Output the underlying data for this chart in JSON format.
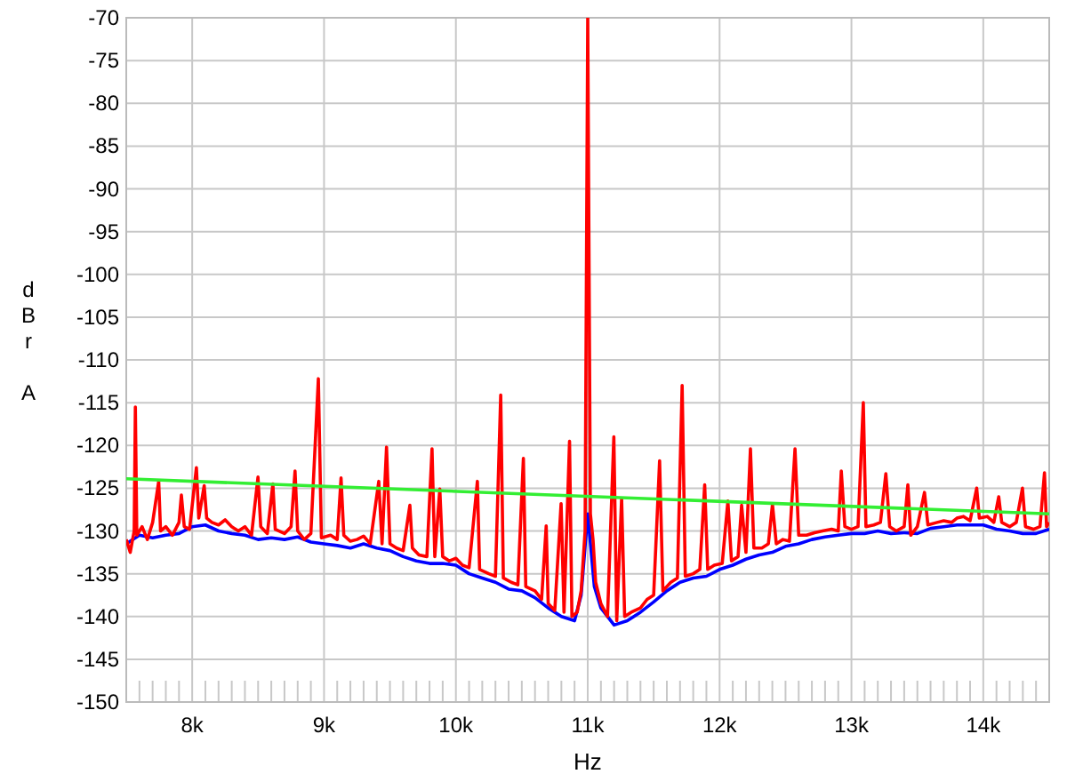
{
  "chart_data": {
    "type": "line",
    "xlabel": "Hz",
    "ylabel": "dBr A",
    "xlim": [
      7500,
      14500
    ],
    "ylim": [
      -150,
      -70
    ],
    "grid": true,
    "line_style": "solid",
    "xticks": [
      {
        "value": 8000,
        "label": "8k"
      },
      {
        "value": 9000,
        "label": "9k"
      },
      {
        "value": 10000,
        "label": "10k"
      },
      {
        "value": 11000,
        "label": "11k"
      },
      {
        "value": 12000,
        "label": "12k"
      },
      {
        "value": 13000,
        "label": "13k"
      },
      {
        "value": 14000,
        "label": "14k"
      },
      {
        "value": 7600,
        "label": null
      },
      {
        "value": 7700,
        "label": null
      },
      {
        "value": 7800,
        "label": null
      },
      {
        "value": 7900,
        "label": null
      },
      {
        "value": 8100,
        "label": null
      },
      {
        "value": 8200,
        "label": null
      },
      {
        "value": 8300,
        "label": null
      },
      {
        "value": 8400,
        "label": null
      },
      {
        "value": 8500,
        "label": null
      },
      {
        "value": 8600,
        "label": null
      },
      {
        "value": 8700,
        "label": null
      },
      {
        "value": 8800,
        "label": null
      },
      {
        "value": 8900,
        "label": null
      },
      {
        "value": 9100,
        "label": null
      },
      {
        "value": 9200,
        "label": null
      },
      {
        "value": 9300,
        "label": null
      },
      {
        "value": 9400,
        "label": null
      },
      {
        "value": 9500,
        "label": null
      },
      {
        "value": 9600,
        "label": null
      },
      {
        "value": 9700,
        "label": null
      },
      {
        "value": 9800,
        "label": null
      },
      {
        "value": 9900,
        "label": null
      },
      {
        "value": 10100,
        "label": null
      },
      {
        "value": 10200,
        "label": null
      },
      {
        "value": 10300,
        "label": null
      },
      {
        "value": 10400,
        "label": null
      },
      {
        "value": 10500,
        "label": null
      },
      {
        "value": 10600,
        "label": null
      },
      {
        "value": 10700,
        "label": null
      },
      {
        "value": 10800,
        "label": null
      },
      {
        "value": 10900,
        "label": null
      },
      {
        "value": 11100,
        "label": null
      },
      {
        "value": 11200,
        "label": null
      },
      {
        "value": 11300,
        "label": null
      },
      {
        "value": 11400,
        "label": null
      },
      {
        "value": 11500,
        "label": null
      },
      {
        "value": 11600,
        "label": null
      },
      {
        "value": 11700,
        "label": null
      },
      {
        "value": 11800,
        "label": null
      },
      {
        "value": 11900,
        "label": null
      },
      {
        "value": 12100,
        "label": null
      },
      {
        "value": 12200,
        "label": null
      },
      {
        "value": 12300,
        "label": null
      },
      {
        "value": 12400,
        "label": null
      },
      {
        "value": 12500,
        "label": null
      },
      {
        "value": 12600,
        "label": null
      },
      {
        "value": 12700,
        "label": null
      },
      {
        "value": 12800,
        "label": null
      },
      {
        "value": 12900,
        "label": null
      },
      {
        "value": 13100,
        "label": null
      },
      {
        "value": 13200,
        "label": null
      },
      {
        "value": 13300,
        "label": null
      },
      {
        "value": 13400,
        "label": null
      },
      {
        "value": 13500,
        "label": null
      },
      {
        "value": 13600,
        "label": null
      },
      {
        "value": 13700,
        "label": null
      },
      {
        "value": 13800,
        "label": null
      },
      {
        "value": 13900,
        "label": null
      },
      {
        "value": 14100,
        "label": null
      },
      {
        "value": 14200,
        "label": null
      },
      {
        "value": 14300,
        "label": null
      },
      {
        "value": 14400,
        "label": null
      }
    ],
    "yticks": [
      -150,
      -145,
      -140,
      -135,
      -130,
      -125,
      -120,
      -115,
      -110,
      -105,
      -100,
      -95,
      -90,
      -85,
      -80,
      -75,
      -70
    ],
    "series": [
      {
        "color": "#0000ff",
        "x": [
          7500,
          7600,
          7700,
          7800,
          7900,
          8000,
          8100,
          8200,
          8300,
          8400,
          8500,
          8600,
          8700,
          8800,
          8900,
          9000,
          9100,
          9200,
          9300,
          9400,
          9500,
          9600,
          9700,
          9800,
          9900,
          10000,
          10100,
          10200,
          10300,
          10400,
          10500,
          10600,
          10700,
          10800,
          10900,
          10950,
          11000,
          11050,
          11100,
          11200,
          11300,
          11400,
          11500,
          11600,
          11700,
          11800,
          11900,
          12000,
          12100,
          12200,
          12300,
          12400,
          12500,
          12600,
          12700,
          12800,
          12900,
          13000,
          13100,
          13200,
          13300,
          13400,
          13500,
          13600,
          13700,
          13800,
          13900,
          14000,
          14100,
          14200,
          14300,
          14400,
          14500
        ],
        "values": [
          -131.5,
          -130.5,
          -130.8,
          -130.5,
          -130.3,
          -129.5,
          -129.3,
          -130,
          -130.3,
          -130.5,
          -131,
          -130.8,
          -131,
          -130.7,
          -131.3,
          -131.5,
          -131.7,
          -132,
          -131.5,
          -132,
          -132.3,
          -133,
          -133.5,
          -133.8,
          -133.8,
          -134,
          -135,
          -135.5,
          -136,
          -136.8,
          -137,
          -137.8,
          -139,
          -140,
          -140.5,
          -137.5,
          -128,
          -136.5,
          -139,
          -141,
          -140.5,
          -139.5,
          -138.3,
          -137,
          -136,
          -135.5,
          -135.3,
          -134.5,
          -134,
          -133.3,
          -132.8,
          -132.5,
          -131.8,
          -131.5,
          -131,
          -130.7,
          -130.5,
          -130.3,
          -130.3,
          -130,
          -130.3,
          -130.2,
          -130.3,
          -129.7,
          -129.5,
          -129.3,
          -129.3,
          -129.3,
          -129.8,
          -130,
          -130.3,
          -130.3,
          -129.8
        ]
      },
      {
        "color": "#ff0000",
        "x": [
          7500,
          7530,
          7560,
          7569,
          7580,
          7620,
          7660,
          7700,
          7746,
          7760,
          7800,
          7850,
          7900,
          7918,
          7940,
          7980,
          8032,
          8050,
          8091,
          8110,
          8150,
          8200,
          8250,
          8300,
          8350,
          8400,
          8450,
          8499,
          8520,
          8570,
          8612,
          8630,
          8700,
          8750,
          8780,
          8800,
          8850,
          8900,
          8957,
          8980,
          9050,
          9100,
          9129,
          9150,
          9200,
          9250,
          9300,
          9350,
          9415,
          9440,
          9474,
          9500,
          9550,
          9600,
          9651,
          9670,
          9720,
          9780,
          9819,
          9840,
          9878,
          9900,
          9950,
          10000,
          10050,
          10100,
          10163,
          10180,
          10250,
          10300,
          10340,
          10360,
          10420,
          10470,
          10512,
          10530,
          10600,
          10650,
          10685,
          10700,
          10750,
          10798,
          10820,
          10862,
          10880,
          10920,
          10950,
          10980,
          11000,
          11020,
          11040,
          11060,
          11100,
          11150,
          11198,
          11220,
          11257,
          11280,
          11330,
          11400,
          11450,
          11500,
          11545,
          11570,
          11630,
          11680,
          11716,
          11740,
          11800,
          11850,
          11887,
          11910,
          11960,
          12020,
          12063,
          12090,
          12140,
          12167,
          12200,
          12234,
          12260,
          12320,
          12370,
          12401,
          12430,
          12480,
          12530,
          12572,
          12600,
          12660,
          12720,
          12780,
          12850,
          12900,
          12923,
          12950,
          13000,
          13050,
          13090,
          13110,
          13170,
          13220,
          13261,
          13290,
          13340,
          13400,
          13428,
          13450,
          13500,
          13554,
          13580,
          13650,
          13700,
          13760,
          13800,
          13850,
          13900,
          13950,
          13970,
          14030,
          14080,
          14117,
          14140,
          14200,
          14250,
          14297,
          14320,
          14380,
          14430,
          14464,
          14480,
          14500
        ],
        "values": [
          -131,
          -132.5,
          -130,
          -115.5,
          -130.5,
          -129.5,
          -131,
          -129,
          -124.2,
          -130,
          -129.5,
          -130.5,
          -129,
          -125.8,
          -129.5,
          -129.8,
          -122.6,
          -128.5,
          -124.7,
          -128.5,
          -129,
          -129.3,
          -128.7,
          -129.5,
          -130,
          -129.5,
          -130.5,
          -123.7,
          -129.5,
          -130.3,
          -124.5,
          -129.8,
          -130.3,
          -129.5,
          -123,
          -130,
          -131,
          -130.3,
          -112.2,
          -130.8,
          -130.5,
          -131,
          -123.8,
          -130.5,
          -131.2,
          -131,
          -130.6,
          -131.5,
          -124.2,
          -131.5,
          -120.2,
          -131.5,
          -132,
          -132.3,
          -127,
          -132,
          -132.8,
          -133,
          -120.4,
          -133,
          -125.1,
          -133,
          -133.5,
          -133.2,
          -134,
          -134.3,
          -124.2,
          -134.5,
          -135,
          -135.3,
          -114.1,
          -135.5,
          -136,
          -136.3,
          -121.5,
          -136.5,
          -137,
          -138,
          -129.4,
          -138.5,
          -139.3,
          -126.8,
          -139.5,
          -119.5,
          -140,
          -139.5,
          -137,
          -130,
          -70,
          -128,
          -131,
          -136,
          -138.5,
          -140,
          -119,
          -140.5,
          -126.2,
          -140,
          -139.5,
          -139,
          -138,
          -137.5,
          -121.8,
          -137,
          -136,
          -135.5,
          -113,
          -135.3,
          -135,
          -134.5,
          -124.6,
          -134.5,
          -134,
          -133.8,
          -126.5,
          -133.5,
          -133,
          -127,
          -132.5,
          -120.4,
          -132,
          -132,
          -131.5,
          -126.9,
          -131.5,
          -131,
          -131.2,
          -120.4,
          -130.5,
          -130.5,
          -130.2,
          -130,
          -129.8,
          -130,
          -123,
          -129.5,
          -129.8,
          -129.5,
          -115,
          -129.5,
          -129.3,
          -129,
          -123.3,
          -129.5,
          -130,
          -129.5,
          -124.6,
          -130.5,
          -129.5,
          -125.5,
          -129.3,
          -129,
          -128.8,
          -129,
          -128.5,
          -128.3,
          -128.8,
          -125,
          -128.5,
          -128.3,
          -129,
          -126,
          -129,
          -129.5,
          -129,
          -125,
          -129.5,
          -129.8,
          -129.5,
          -123.2,
          -129.5,
          -129
        ]
      },
      {
        "color": "#33ee33",
        "x": [
          7500,
          14500
        ],
        "values": [
          -123.9,
          -128
        ]
      }
    ]
  }
}
